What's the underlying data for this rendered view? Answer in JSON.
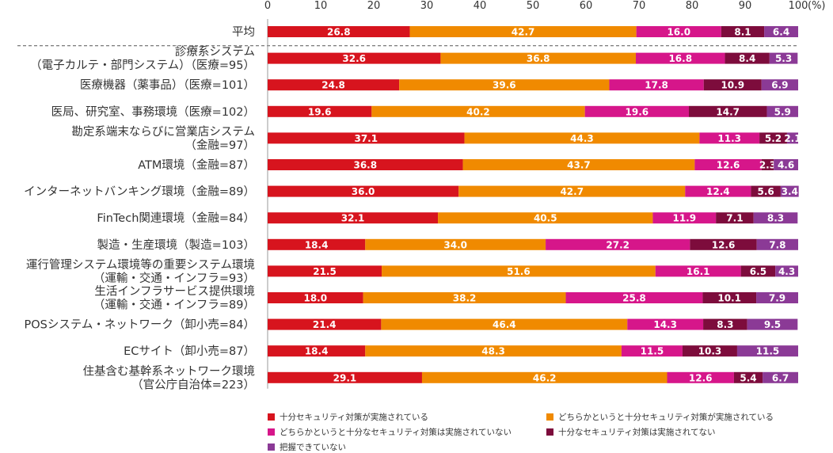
{
  "chart_data": {
    "type": "bar",
    "orientation": "horizontal",
    "stacked": true,
    "xlim": [
      0,
      100
    ],
    "x_ticks": [
      "0",
      "10",
      "20",
      "30",
      "40",
      "50",
      "60",
      "70",
      "80",
      "90",
      "100"
    ],
    "x_unit": "(%)",
    "categories": [
      [
        "平均"
      ],
      [
        "診療系システム",
        "（電子カルテ・部門システム）（医療=95）"
      ],
      [
        "医療機器（薬事品）（医療=101）"
      ],
      [
        "医局、研究室、事務環境（医療=102）"
      ],
      [
        "勘定系端末ならびに営業店システム",
        "（金融=97）"
      ],
      [
        "ATM環境（金融=87）"
      ],
      [
        "インターネットバンキング環境（金融=89）"
      ],
      [
        "FinTech関連環境（金融=84）"
      ],
      [
        "製造・生産環境（製造=103）"
      ],
      [
        "運行管理システム環境等の重要システム環境",
        "（運輸・交通・インフラ=93）"
      ],
      [
        "生活インフラサービス提供環境",
        "（運輸・交通・インフラ=89）"
      ],
      [
        "POSシステム・ネットワーク（卸小売=84）"
      ],
      [
        "ECサイト（卸小売=87）"
      ],
      [
        "住基含む基幹系ネットワーク環境",
        "（官公庁自治体=223）"
      ]
    ],
    "series": [
      {
        "name": "十分セキュリティ対策が実施されている",
        "color": "#d7141e",
        "values": [
          26.8,
          32.6,
          24.8,
          19.6,
          37.1,
          36.8,
          36.0,
          32.1,
          18.4,
          21.5,
          18.0,
          21.4,
          18.4,
          29.1
        ]
      },
      {
        "name": "どちらかというと十分セキュリティ対策が実施されている",
        "color": "#f08a00",
        "values": [
          42.7,
          36.8,
          39.6,
          40.2,
          44.3,
          43.7,
          42.7,
          40.5,
          34.0,
          51.6,
          38.2,
          46.4,
          48.3,
          46.2
        ]
      },
      {
        "name": "どちらかというと十分なセキュリティ対策は実施されていない",
        "color": "#d6168a",
        "values": [
          16.0,
          16.8,
          17.8,
          19.6,
          11.3,
          12.6,
          12.4,
          11.9,
          27.2,
          16.1,
          25.8,
          14.3,
          11.5,
          12.6
        ]
      },
      {
        "name": "十分なセキュリティ対策は実施されてない",
        "color": "#7d0c3c",
        "values": [
          8.1,
          8.4,
          10.9,
          14.7,
          5.2,
          2.3,
          5.6,
          7.1,
          12.6,
          6.5,
          10.1,
          8.3,
          10.3,
          5.4
        ]
      },
      {
        "name": "把握できていない",
        "color": "#8b3a96",
        "values": [
          6.4,
          5.3,
          6.9,
          5.9,
          2.1,
          4.6,
          3.4,
          8.3,
          7.8,
          4.3,
          7.9,
          9.5,
          11.5,
          6.7
        ]
      }
    ],
    "value_labels": [
      [
        "26.8",
        "42.7",
        "16.0",
        "8.1",
        "6.4"
      ],
      [
        "32.6",
        "36.8",
        "16.8",
        "8.4",
        "5.3"
      ],
      [
        "24.8",
        "39.6",
        "17.8",
        "10.9",
        "6.9"
      ],
      [
        "19.6",
        "40.2",
        "19.6",
        "14.7",
        "5.9"
      ],
      [
        "37.1",
        "44.3",
        "11.3",
        "5.2",
        "2.1"
      ],
      [
        "36.8",
        "43.7",
        "12.6",
        "2.3",
        "4.6"
      ],
      [
        "36.0",
        "42.7",
        "12.4",
        "5.6",
        "3.4"
      ],
      [
        "32.1",
        "40.5",
        "11.9",
        "7.1",
        "8.3"
      ],
      [
        "18.4",
        "34.0",
        "27.2",
        "12.6",
        "7.8"
      ],
      [
        "21.5",
        "51.6",
        "16.1",
        "6.5",
        "4.3"
      ],
      [
        "18.0",
        "38.2",
        "25.8",
        "10.1",
        "7.9"
      ],
      [
        "21.4",
        "46.4",
        "14.3",
        "8.3",
        "9.5"
      ],
      [
        "18.4",
        "48.3",
        "11.5",
        "10.3",
        "11.5"
      ],
      [
        "29.1",
        "46.2",
        "12.6",
        "5.4",
        "6.7"
      ]
    ]
  }
}
